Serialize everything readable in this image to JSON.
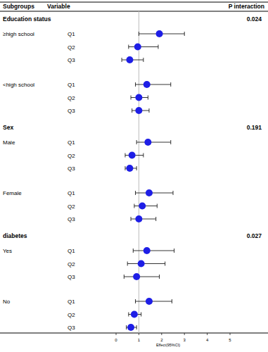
{
  "chart_data": {
    "type": "forest",
    "headers": [
      "Subgroups",
      "Variable",
      "P interaction"
    ],
    "xlabel": "Effect(95%CI)",
    "xlim": [
      0,
      5
    ],
    "xticks": [
      0,
      1,
      2,
      3,
      4,
      5
    ],
    "reference": 1,
    "color": "#1e1ee6",
    "groups": [
      {
        "name": "Education status",
        "p_interaction": "0.024",
        "subgroups": [
          {
            "name": "≥high school",
            "categories": [
              "Q1",
              "Q2",
              "Q3"
            ],
            "values": [
              1.9,
              0.95,
              0.6
            ],
            "ci_lower": [
              1.0,
              0.55,
              0.25
            ],
            "ci_upper": [
              3.0,
              1.85,
              1.2
            ]
          },
          {
            "name": "<high school",
            "categories": [
              "Q1",
              "Q2",
              "Q3"
            ],
            "values": [
              1.35,
              1.0,
              1.0
            ],
            "ci_lower": [
              0.85,
              0.65,
              0.7
            ],
            "ci_upper": [
              2.4,
              1.4,
              1.45
            ]
          }
        ]
      },
      {
        "name": "Sex",
        "p_interaction": "0.191",
        "subgroups": [
          {
            "name": "Male",
            "categories": [
              "Q1",
              "Q2",
              "Q3"
            ],
            "values": [
              1.4,
              0.7,
              0.6
            ],
            "ci_lower": [
              0.9,
              0.4,
              0.4
            ],
            "ci_upper": [
              2.4,
              1.2,
              0.9
            ]
          },
          {
            "name": "Female",
            "categories": [
              "Q1",
              "Q2",
              "Q3"
            ],
            "values": [
              1.45,
              1.15,
              1.0
            ],
            "ci_lower": [
              0.85,
              0.8,
              0.65
            ],
            "ci_upper": [
              2.5,
              1.8,
              1.75
            ]
          }
        ]
      },
      {
        "name": "diabetes",
        "p_interaction": "0.027",
        "subgroups": [
          {
            "name": "Yes",
            "categories": [
              "Q1",
              "Q2",
              "Q3"
            ],
            "values": [
              1.35,
              1.1,
              0.9
            ],
            "ci_lower": [
              0.75,
              0.5,
              0.35
            ],
            "ci_upper": [
              2.55,
              2.15,
              1.9
            ]
          },
          {
            "name": "No",
            "categories": [
              "Q1",
              "Q2",
              "Q3"
            ],
            "values": [
              1.45,
              0.8,
              0.65
            ],
            "ci_lower": [
              0.85,
              0.55,
              0.45
            ],
            "ci_upper": [
              2.45,
              1.1,
              0.9
            ]
          }
        ]
      }
    ]
  }
}
